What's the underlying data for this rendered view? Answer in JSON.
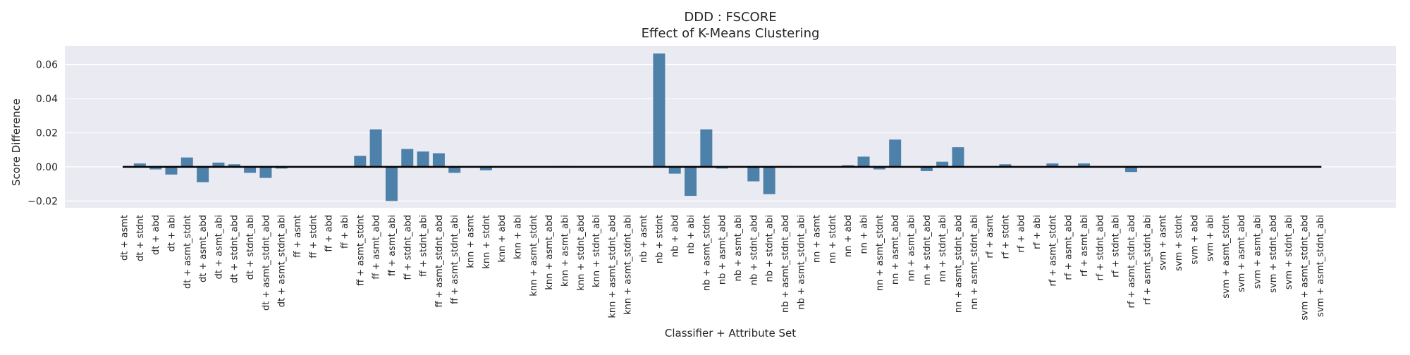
{
  "chart_data": {
    "type": "bar",
    "title": "DDD : FSCORE",
    "subtitle": "Effect of K-Means Clustering",
    "xlabel": "Classifier + Attribute Set",
    "ylabel": "Score Difference",
    "ylim": [
      -0.024,
      0.071
    ],
    "yticks": [
      -0.02,
      0.0,
      0.02,
      0.04,
      0.06
    ],
    "ytick_labels": [
      "−0.02",
      "0.00",
      "0.02",
      "0.04",
      "0.06"
    ],
    "grid": true,
    "bar_color": "#4e81aa",
    "background_color": "#eaeaf2",
    "zero_line": true,
    "categories": [
      "dt + asmt",
      "dt + stdnt",
      "dt + abd",
      "dt + abi",
      "dt + asmt_stdnt",
      "dt + asmt_abd",
      "dt + asmt_abi",
      "dt + stdnt_abd",
      "dt + stdnt_abi",
      "dt + asmt_stdnt_abd",
      "dt + asmt_stdnt_abi",
      "ff + asmt",
      "ff + stdnt",
      "ff + abd",
      "ff + abi",
      "ff + asmt_stdnt",
      "ff + asmt_abd",
      "ff + asmt_abi",
      "ff + stdnt_abd",
      "ff + stdnt_abi",
      "ff + asmt_stdnt_abd",
      "ff + asmt_stdnt_abi",
      "knn + asmt",
      "knn + stdnt",
      "knn + abd",
      "knn + abi",
      "knn + asmt_stdnt",
      "knn + asmt_abd",
      "knn + asmt_abi",
      "knn + stdnt_abd",
      "knn + stdnt_abi",
      "knn + asmt_stdnt_abd",
      "knn + asmt_stdnt_abi",
      "nb + asmt",
      "nb + stdnt",
      "nb + abd",
      "nb + abi",
      "nb + asmt_stdnt",
      "nb + asmt_abd",
      "nb + asmt_abi",
      "nb + stdnt_abd",
      "nb + stdnt_abi",
      "nb + asmt_stdnt_abd",
      "nb + asmt_stdnt_abi",
      "nn + asmt",
      "nn + stdnt",
      "nn + abd",
      "nn + abi",
      "nn + asmt_stdnt",
      "nn + asmt_abd",
      "nn + asmt_abi",
      "nn + stdnt_abd",
      "nn + stdnt_abi",
      "nn + asmt_stdnt_abd",
      "nn + asmt_stdnt_abi",
      "rf + asmt",
      "rf + stdnt",
      "rf + abd",
      "rf + abi",
      "rf + asmt_stdnt",
      "rf + asmt_abd",
      "rf + asmt_abi",
      "rf + stdnt_abd",
      "rf + stdnt_abi",
      "rf + asmt_stdnt_abd",
      "rf + asmt_stdnt_abi",
      "svm + asmt",
      "svm + stdnt",
      "svm + abd",
      "svm + abi",
      "svm + asmt_stdnt",
      "svm + asmt_abd",
      "svm + asmt_abi",
      "svm + stdnt_abd",
      "svm + stdnt_abi",
      "svm + asmt_stdnt_abd",
      "svm + asmt_stdnt_abi"
    ],
    "values": [
      0.0,
      0.002,
      -0.0015,
      -0.0045,
      0.0055,
      -0.009,
      0.0025,
      0.0015,
      -0.0035,
      -0.0065,
      -0.001,
      0.0,
      0.0,
      0.0,
      0.0,
      0.0065,
      0.022,
      -0.02,
      0.0105,
      0.009,
      0.008,
      -0.0035,
      0.0,
      -0.002,
      0.0,
      0.0,
      0.0,
      0.0,
      0.0005,
      0.0,
      0.0,
      0.0,
      0.0,
      0.0,
      0.0665,
      -0.004,
      -0.017,
      0.022,
      -0.001,
      0.0,
      -0.0085,
      -0.016,
      0.0005,
      0.0,
      0.0,
      0.0,
      0.001,
      0.006,
      -0.0015,
      0.016,
      0.0,
      -0.0025,
      0.003,
      0.0115,
      0.0,
      0.0,
      0.0015,
      0.0,
      0.0,
      0.002,
      0.0,
      0.002,
      0.0,
      0.0,
      -0.003,
      0.0,
      0.0,
      0.0,
      0.0,
      0.0,
      0.0,
      0.0,
      0.0,
      0.0,
      0.0,
      0.0,
      0.0
    ]
  }
}
